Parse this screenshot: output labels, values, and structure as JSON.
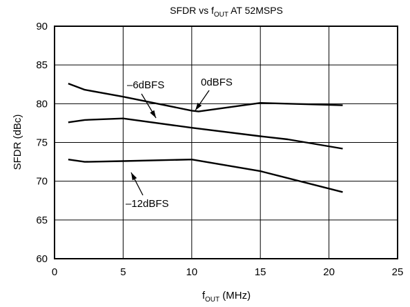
{
  "chart_data": {
    "type": "line",
    "title": {
      "main": "SFDR vs f",
      "sub": "OUT",
      "rest": " AT 52MSPS"
    },
    "xlabel": {
      "main": "f",
      "sub": "OUT",
      "rest": " (MHz)"
    },
    "ylabel": "SFDR (dBc)",
    "xlim": [
      0,
      25
    ],
    "ylim": [
      60,
      90
    ],
    "xticks": [
      0,
      5,
      10,
      15,
      20,
      25
    ],
    "yticks": [
      60,
      65,
      70,
      75,
      80,
      85,
      90
    ],
    "xtick_labels": [
      "0",
      "5",
      "10",
      "15",
      "20",
      "25"
    ],
    "ytick_labels": [
      "60",
      "65",
      "70",
      "75",
      "80",
      "85",
      "90"
    ],
    "grid": true,
    "line_color": "#000000",
    "series": [
      {
        "name": "0dBFS",
        "x": [
          1,
          2.2,
          5,
          10,
          10.5,
          15,
          21
        ],
        "y": [
          82.6,
          81.8,
          80.9,
          79.1,
          79.0,
          80.1,
          79.8
        ]
      },
      {
        "name": "–6dBFS",
        "x": [
          1,
          2.2,
          5,
          10,
          15,
          17,
          21
        ],
        "y": [
          77.6,
          77.9,
          78.1,
          76.9,
          75.8,
          75.4,
          74.2
        ]
      },
      {
        "name": "–12dBFS",
        "x": [
          1,
          2.2,
          5,
          10,
          15,
          21
        ],
        "y": [
          72.8,
          72.5,
          72.6,
          72.8,
          71.3,
          68.6
        ]
      }
    ],
    "annotations": [
      {
        "text": "0dBFS",
        "series": "0dBFS"
      },
      {
        "text": "–6dBFS",
        "series": "–6dBFS"
      },
      {
        "text": "–12dBFS",
        "series": "–12dBFS"
      }
    ]
  }
}
